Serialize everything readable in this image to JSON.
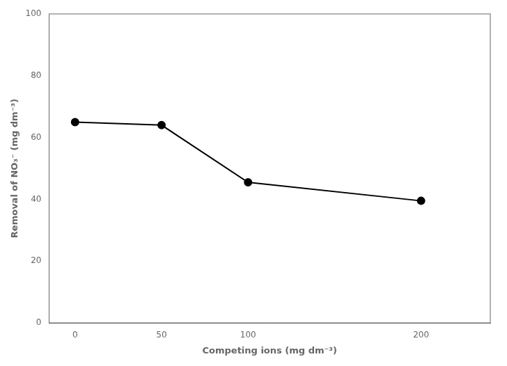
{
  "chart_data": {
    "type": "line",
    "x": [
      0,
      50,
      100,
      200
    ],
    "values": [
      65,
      64,
      45.5,
      39.5
    ],
    "color": "#000000",
    "marker": "circle",
    "line_style": "solid",
    "xlabel": "Competing ions (mg dm⁻³)",
    "ylabel": "Removal of NO₃⁻ (mg dm⁻³)",
    "xlim": [
      -15,
      240
    ],
    "ylim": [
      0,
      100
    ],
    "xticks": [
      0,
      50,
      100,
      200
    ],
    "yticks": [
      0,
      20,
      40,
      60,
      80,
      100
    ],
    "grid": false
  }
}
